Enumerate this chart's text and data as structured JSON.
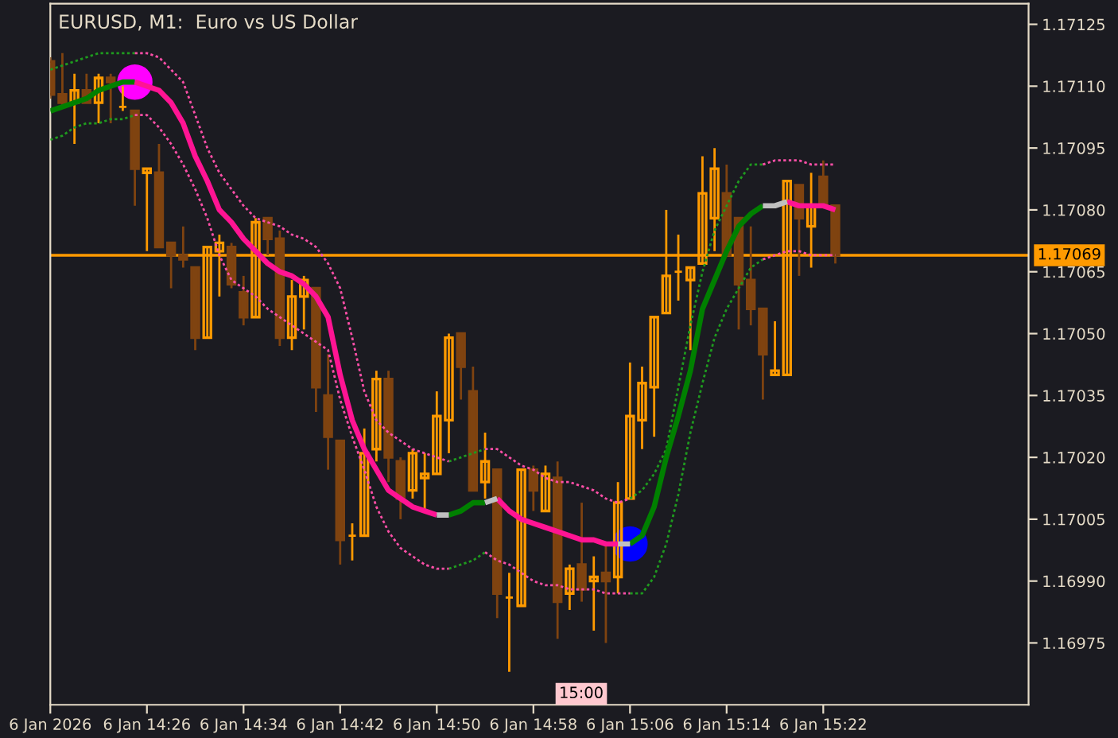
{
  "chart_data": {
    "type": "candlestick",
    "title": "EURUSD, M1:  Euro vs US Dollar",
    "x": [
      "2026-01-06T14:18",
      "2026-01-06T14:19",
      "2026-01-06T14:20",
      "2026-01-06T14:21",
      "2026-01-06T14:22",
      "2026-01-06T14:23",
      "2026-01-06T14:24",
      "2026-01-06T14:25",
      "2026-01-06T14:26",
      "2026-01-06T14:27",
      "2026-01-06T14:28",
      "2026-01-06T14:29",
      "2026-01-06T14:30",
      "2026-01-06T14:31",
      "2026-01-06T14:32",
      "2026-01-06T14:33",
      "2026-01-06T14:34",
      "2026-01-06T14:35",
      "2026-01-06T14:36",
      "2026-01-06T14:37",
      "2026-01-06T14:38",
      "2026-01-06T14:39",
      "2026-01-06T14:40",
      "2026-01-06T14:41",
      "2026-01-06T14:42",
      "2026-01-06T14:43",
      "2026-01-06T14:44",
      "2026-01-06T14:45",
      "2026-01-06T14:46",
      "2026-01-06T14:47",
      "2026-01-06T14:48",
      "2026-01-06T14:49",
      "2026-01-06T14:50",
      "2026-01-06T14:51",
      "2026-01-06T14:52",
      "2026-01-06T14:53",
      "2026-01-06T14:54",
      "2026-01-06T14:55",
      "2026-01-06T14:56",
      "2026-01-06T14:57",
      "2026-01-06T14:58",
      "2026-01-06T14:59",
      "2026-01-06T15:00",
      "2026-01-06T15:01",
      "2026-01-06T15:02",
      "2026-01-06T15:03",
      "2026-01-06T15:04",
      "2026-01-06T15:05",
      "2026-01-06T15:06",
      "2026-01-06T15:07",
      "2026-01-06T15:08",
      "2026-01-06T15:09",
      "2026-01-06T15:10",
      "2026-01-06T15:11",
      "2026-01-06T15:12",
      "2026-01-06T15:13",
      "2026-01-06T15:14",
      "2026-01-06T15:15",
      "2026-01-06T15:16",
      "2026-01-06T15:17",
      "2026-01-06T15:18",
      "2026-01-06T15:19",
      "2026-01-06T15:20",
      "2026-01-06T15:21",
      "2026-01-06T15:22",
      "2026-01-06T15:23"
    ],
    "ohlc": [
      [
        1.17116,
        1.17117,
        1.17107,
        1.17108
      ],
      [
        1.17108,
        1.17118,
        1.17105,
        1.17106
      ],
      [
        1.17106,
        1.17113,
        1.17096,
        1.17109
      ],
      [
        1.17109,
        1.17113,
        1.17106,
        1.17106
      ],
      [
        1.17106,
        1.17113,
        1.17101,
        1.17112
      ],
      [
        1.17112,
        1.17113,
        1.17101,
        1.17111
      ],
      [
        1.17105,
        1.1711,
        1.17104,
        1.17105
      ],
      [
        1.17104,
        1.17104,
        1.17081,
        1.1709
      ],
      [
        1.17089,
        1.1709,
        1.1707,
        1.1709
      ],
      [
        1.17089,
        1.17096,
        1.17071,
        1.17071
      ],
      [
        1.17072,
        1.17072,
        1.17061,
        1.17069
      ],
      [
        1.17069,
        1.17076,
        1.17066,
        1.17068
      ],
      [
        1.17066,
        1.17066,
        1.17046,
        1.17049
      ],
      [
        1.17049,
        1.17071,
        1.17049,
        1.17071
      ],
      [
        1.1707,
        1.17074,
        1.17059,
        1.17072
      ],
      [
        1.17071,
        1.17072,
        1.17061,
        1.17062
      ],
      [
        1.1706,
        1.17064,
        1.17052,
        1.17054
      ],
      [
        1.17054,
        1.17078,
        1.17054,
        1.17077
      ],
      [
        1.17078,
        1.17078,
        1.17069,
        1.17073
      ],
      [
        1.17073,
        1.17075,
        1.17047,
        1.17049
      ],
      [
        1.17049,
        1.17063,
        1.17046,
        1.17059
      ],
      [
        1.17059,
        1.17064,
        1.17051,
        1.17063
      ],
      [
        1.17061,
        1.17061,
        1.17031,
        1.17037
      ],
      [
        1.17035,
        1.17045,
        1.17017,
        1.17025
      ],
      [
        1.17024,
        1.17024,
        1.16994,
        1.17
      ],
      [
        1.17001,
        1.17004,
        1.16995,
        1.17001
      ],
      [
        1.17001,
        1.17027,
        1.17001,
        1.17021
      ],
      [
        1.17022,
        1.17041,
        1.17019,
        1.17039
      ],
      [
        1.17039,
        1.17041,
        1.17014,
        1.1702
      ],
      [
        1.17019,
        1.1702,
        1.17005,
        1.1701
      ],
      [
        1.17012,
        1.17022,
        1.1701,
        1.17021
      ],
      [
        1.17015,
        1.17021,
        1.17007,
        1.17016
      ],
      [
        1.17016,
        1.17036,
        1.17016,
        1.1703
      ],
      [
        1.17029,
        1.1705,
        1.17021,
        1.17049
      ],
      [
        1.1705,
        1.1705,
        1.17034,
        1.17042
      ],
      [
        1.17036,
        1.17042,
        1.17012,
        1.17012
      ],
      [
        1.17014,
        1.17026,
        1.1701,
        1.17019
      ],
      [
        1.17017,
        1.17017,
        1.16981,
        1.16987
      ],
      [
        1.16986,
        1.16992,
        1.16968,
        1.16986
      ],
      [
        1.16984,
        1.17017,
        1.16984,
        1.17017
      ],
      [
        1.17017,
        1.17018,
        1.17007,
        1.17012
      ],
      [
        1.17007,
        1.17018,
        1.17007,
        1.17016
      ],
      [
        1.17015,
        1.17019,
        1.16976,
        1.16985
      ],
      [
        1.16987,
        1.16994,
        1.16983,
        1.16993
      ],
      [
        1.16994,
        1.17009,
        1.16985,
        1.16988
      ],
      [
        1.1699,
        1.16996,
        1.16978,
        1.16991
      ],
      [
        1.16992,
        1.16999,
        1.16975,
        1.1699
      ],
      [
        1.16991,
        1.17014,
        1.16987,
        1.17009
      ],
      [
        1.1701,
        1.17043,
        1.1701,
        1.1703
      ],
      [
        1.17029,
        1.17042,
        1.17022,
        1.17038
      ],
      [
        1.17037,
        1.17054,
        1.17025,
        1.17054
      ],
      [
        1.17055,
        1.1708,
        1.17055,
        1.17064
      ],
      [
        1.17065,
        1.17074,
        1.17058,
        1.17065
      ],
      [
        1.17063,
        1.17066,
        1.17046,
        1.17066
      ],
      [
        1.17067,
        1.17093,
        1.17067,
        1.17084
      ],
      [
        1.17078,
        1.17095,
        1.1707,
        1.1709
      ],
      [
        1.17084,
        1.17091,
        1.17069,
        1.17069
      ],
      [
        1.17078,
        1.17078,
        1.17051,
        1.17062
      ],
      [
        1.17063,
        1.17076,
        1.17052,
        1.17056
      ],
      [
        1.17056,
        1.17056,
        1.17034,
        1.17045
      ],
      [
        1.1704,
        1.17053,
        1.1704,
        1.17041
      ],
      [
        1.1704,
        1.17087,
        1.1704,
        1.17087
      ],
      [
        1.17086,
        1.17086,
        1.17064,
        1.17078
      ],
      [
        1.17076,
        1.17089,
        1.17066,
        1.17081
      ],
      [
        1.17088,
        1.17092,
        1.17081,
        1.17081
      ],
      [
        1.17081,
        1.17081,
        1.17067,
        1.17069
      ]
    ],
    "colors": [
      "#7f4310",
      "#7f4310",
      "#ff9a00",
      "#7f4310",
      "#ff9a00",
      "#7f4310",
      "#ff9a00",
      "#7f4310",
      "#ff9a00",
      "#7f4310",
      "#7f4310",
      "#7f4310",
      "#7f4310",
      "#ff9a00",
      "#ff9a00",
      "#7f4310",
      "#7f4310",
      "#ff9a00",
      "#7f4310",
      "#7f4310",
      "#ff9a00",
      "#ff9a00",
      "#7f4310",
      "#7f4310",
      "#7f4310",
      "#ff9a00",
      "#ff9a00",
      "#ff9a00",
      "#7f4310",
      "#7f4310",
      "#ff9a00",
      "#ff9a00",
      "#ff9a00",
      "#ff9a00",
      "#7f4310",
      "#7f4310",
      "#ff9a00",
      "#7f4310",
      "#ff9a00",
      "#ff9a00",
      "#7f4310",
      "#ff9a00",
      "#7f4310",
      "#ff9a00",
      "#7f4310",
      "#ff9a00",
      "#7f4310",
      "#ff9a00",
      "#ff9a00",
      "#ff9a00",
      "#ff9a00",
      "#ff9a00",
      "#ff9a00",
      "#ff9a00",
      "#ff9a00",
      "#ff9a00",
      "#7f4310",
      "#7f4310",
      "#7f4310",
      "#7f4310",
      "#ff9a00",
      "#ff9a00",
      "#7f4310",
      "#ff9a00",
      "#7f4310",
      "#7f4310"
    ],
    "series": [
      {
        "type": "line",
        "line_style": "dashed",
        "color": "#1f9a1f",
        "values": [
          1.17114,
          1.17115,
          1.17116,
          1.17117,
          1.17118,
          1.17118,
          1.17118,
          1.17118,
          null,
          null,
          null,
          null,
          null,
          null,
          null,
          null,
          null,
          null,
          null,
          null,
          null,
          null,
          null,
          null,
          null,
          null,
          null,
          null,
          null,
          null,
          null,
          null,
          null,
          1.17019,
          1.1702,
          1.17021,
          1.17022,
          null,
          null,
          null,
          null,
          null,
          null,
          null,
          null,
          null,
          null,
          null,
          1.1701,
          1.17012,
          1.17016,
          1.17022,
          1.17037,
          1.17052,
          1.17065,
          1.17075,
          1.17081,
          1.17087,
          1.17091,
          1.17091,
          null,
          null,
          null,
          null,
          null,
          null
        ]
      },
      {
        "type": "line",
        "line_style": "dashed",
        "color": "#ff4fa8",
        "values": [
          null,
          null,
          null,
          null,
          null,
          null,
          null,
          1.17118,
          1.17118,
          1.17117,
          1.17114,
          1.17111,
          1.17103,
          1.17095,
          1.17089,
          1.17085,
          1.17081,
          1.17078,
          1.17077,
          1.17076,
          1.17074,
          1.17073,
          1.17071,
          1.17067,
          1.17061,
          1.17049,
          1.17036,
          1.17029,
          1.17026,
          1.17024,
          1.17022,
          1.17021,
          1.1702,
          1.17019,
          null,
          null,
          1.17022,
          1.17022,
          1.1702,
          1.17018,
          1.17017,
          1.17015,
          1.17014,
          1.17014,
          1.17013,
          1.17012,
          1.1701,
          1.17009,
          1.1701,
          null,
          null,
          null,
          null,
          null,
          null,
          null,
          null,
          null,
          null,
          1.17091,
          1.17092,
          1.17092,
          1.17092,
          1.17091,
          1.17091,
          1.17091
        ]
      },
      {
        "type": "line",
        "line_style": "dashed",
        "color": "#1f9a1f",
        "values": [
          1.17097,
          1.17098,
          1.171,
          1.17101,
          1.17101,
          1.17102,
          1.17102,
          1.17103,
          null,
          null,
          null,
          null,
          null,
          null,
          null,
          null,
          null,
          null,
          null,
          null,
          null,
          null,
          null,
          null,
          null,
          null,
          null,
          null,
          null,
          null,
          null,
          null,
          null,
          1.16993,
          1.16994,
          1.16995,
          1.16997,
          null,
          null,
          null,
          null,
          null,
          null,
          null,
          null,
          null,
          null,
          null,
          1.16987,
          1.16987,
          1.16991,
          1.16999,
          1.17011,
          1.17026,
          1.17038,
          1.17049,
          1.17056,
          1.17061,
          1.17066,
          1.17068,
          null,
          null,
          null,
          null,
          null,
          null
        ]
      },
      {
        "type": "line",
        "line_style": "dashed",
        "color": "#ff4fa8",
        "values": [
          null,
          null,
          null,
          null,
          null,
          null,
          null,
          1.17103,
          1.17103,
          1.171,
          1.17096,
          1.17091,
          1.17085,
          1.17078,
          1.17069,
          1.17063,
          1.17061,
          1.17059,
          1.17056,
          1.17054,
          1.17052,
          1.1705,
          1.17048,
          1.17046,
          1.17034,
          1.17025,
          1.17017,
          1.17008,
          1.17002,
          1.16998,
          1.16996,
          1.16994,
          1.16993,
          1.16993,
          null,
          null,
          1.16997,
          1.16995,
          1.16994,
          1.16992,
          1.1699,
          1.16989,
          1.16989,
          1.16988,
          1.16988,
          1.16988,
          1.16987,
          1.16987,
          1.16987,
          null,
          null,
          null,
          null,
          null,
          null,
          null,
          null,
          null,
          null,
          1.17068,
          1.17069,
          1.1707,
          1.1707,
          1.17069,
          1.17069,
          1.17069
        ]
      },
      {
        "type": "line",
        "line_style": "solid",
        "color": "#008000",
        "values": [
          1.17104,
          1.17105,
          1.17106,
          1.17107,
          1.17109,
          1.1711,
          1.17111,
          1.17111,
          null,
          null,
          null,
          null,
          null,
          null,
          null,
          null,
          null,
          null,
          null,
          null,
          null,
          null,
          null,
          null,
          null,
          null,
          null,
          null,
          null,
          null,
          null,
          null,
          null,
          1.17006,
          1.17007,
          1.17009,
          1.17009,
          null,
          null,
          null,
          null,
          null,
          null,
          null,
          null,
          null,
          null,
          null,
          1.16999,
          1.17001,
          1.17008,
          1.1702,
          1.1703,
          1.17041,
          1.17056,
          1.17063,
          1.1707,
          1.17076,
          1.17079,
          1.17081,
          null,
          null,
          null,
          null,
          null,
          null
        ]
      },
      {
        "type": "line",
        "line_style": "solid",
        "color": "#ff1493",
        "values": [
          null,
          null,
          null,
          null,
          null,
          null,
          null,
          1.17111,
          1.1711,
          1.17109,
          1.17106,
          1.17101,
          1.17093,
          1.17087,
          1.1708,
          1.17077,
          1.17073,
          1.1707,
          1.17067,
          1.17065,
          1.17064,
          1.17062,
          1.17059,
          1.17054,
          1.1704,
          1.17029,
          1.17022,
          1.17017,
          1.17012,
          1.1701,
          1.17008,
          1.17007,
          1.17006,
          null,
          null,
          null,
          null,
          1.1701,
          1.17007,
          1.17005,
          1.17004,
          1.17003,
          1.17002,
          1.17001,
          1.17,
          1.17,
          1.16999,
          1.16999,
          null,
          null,
          null,
          null,
          null,
          null,
          null,
          null,
          null,
          null,
          null,
          null,
          null,
          1.17082,
          1.17081,
          1.17081,
          1.17081,
          1.1708
        ]
      },
      {
        "type": "line",
        "line_style": "solid",
        "color": "#c0c0c0",
        "values": [
          null,
          null,
          null,
          null,
          null,
          null,
          null,
          null,
          null,
          null,
          null,
          null,
          null,
          null,
          null,
          null,
          null,
          null,
          null,
          null,
          null,
          null,
          null,
          null,
          null,
          null,
          null,
          null,
          null,
          null,
          null,
          null,
          1.17006,
          1.17006,
          null,
          null,
          1.17009,
          1.1701,
          null,
          null,
          null,
          null,
          null,
          null,
          null,
          null,
          null,
          1.16999,
          1.16999,
          null,
          null,
          null,
          null,
          null,
          null,
          null,
          null,
          null,
          null,
          null,
          null,
          null,
          null,
          null,
          null,
          null
        ]
      },
      {
        "type": "line",
        "line_style": "solid",
        "color": "#c0c0c0",
        "x": [
          "2026-01-06T15:17",
          "2026-01-06T15:18",
          "2026-01-06T15:19"
        ],
        "values": [
          1.17081,
          1.17081,
          1.17082
        ]
      },
      {
        "type": "scatter",
        "marker": "circle",
        "color": "#ff00ff",
        "x": [
          "2026-01-06T14:25"
        ],
        "values": [
          1.17111
        ]
      },
      {
        "type": "scatter",
        "marker": "circle",
        "color": "#0000ff",
        "x": [
          "2026-01-06T15:06"
        ],
        "values": [
          1.16999
        ]
      }
    ],
    "xlim": [
      "2026-01-06T14:18",
      "2026-01-06T15:39"
    ],
    "xticks": [
      {
        "value": "2026-01-06T14:18",
        "label": "6 Jan 2026"
      },
      {
        "value": "2026-01-06T14:26",
        "label": "6 Jan 14:26"
      },
      {
        "value": "2026-01-06T14:34",
        "label": "6 Jan 14:34"
      },
      {
        "value": "2026-01-06T14:42",
        "label": "6 Jan 14:42"
      },
      {
        "value": "2026-01-06T14:50",
        "label": "6 Jan 14:50"
      },
      {
        "value": "2026-01-06T14:58",
        "label": "6 Jan 14:58"
      },
      {
        "value": "2026-01-06T15:06",
        "label": "6 Jan 15:06"
      },
      {
        "value": "2026-01-06T15:14",
        "label": "6 Jan 15:14"
      },
      {
        "value": "2026-01-06T15:22",
        "label": "6 Jan 15:22"
      }
    ],
    "ylim": [
      1.1696,
      1.1713
    ],
    "yticks": [
      1.16975,
      {
        "value": 1.1699,
        "label": "1.16990"
      },
      1.17005,
      {
        "value": 1.1702,
        "label": "1.17020"
      },
      1.17035,
      {
        "value": 1.1705,
        "label": "1.17050"
      },
      1.17065,
      {
        "value": 1.1708,
        "label": "1.17080"
      },
      1.17095,
      {
        "value": 1.1711,
        "label": "1.17110"
      },
      1.17125
    ],
    "ref_lines": [
      {
        "axis": "y",
        "value": 1.17069,
        "label": "1.17069",
        "color": "#ff9a00"
      }
    ],
    "annotations": [
      "15:00"
    ],
    "grid": false,
    "legend": false
  }
}
